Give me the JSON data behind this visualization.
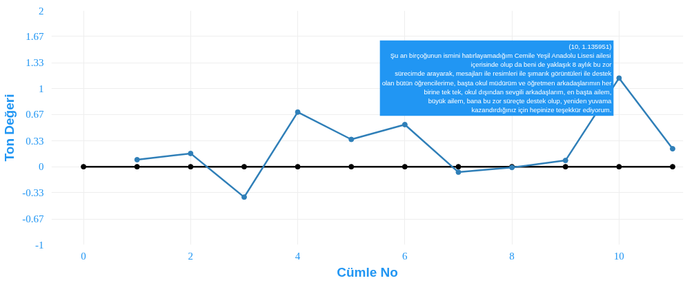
{
  "chart_data": {
    "type": "line",
    "xlabel": "Cümle No",
    "ylabel": "Ton Değeri",
    "xlim": [
      -0.6,
      11.2
    ],
    "ylim": [
      -1,
      2
    ],
    "xticks": [
      0,
      2,
      4,
      6,
      8,
      10
    ],
    "yticks": [
      -1,
      -0.67,
      -0.33,
      0,
      0.33,
      0.67,
      1,
      1.33,
      1.67,
      2
    ],
    "grid": true,
    "marker": "circle",
    "line_style": "solid",
    "series": [
      {
        "color": "#000000",
        "x": [
          0,
          1,
          2,
          3,
          4,
          5,
          6,
          7,
          8,
          9,
          10,
          11
        ],
        "values": [
          0,
          0,
          0,
          0,
          0,
          0,
          0,
          0,
          0,
          0,
          0,
          0
        ]
      },
      {
        "color": "#2f7fb8",
        "x": [
          1,
          2,
          3,
          4,
          5,
          6,
          7,
          8,
          9,
          10,
          11
        ],
        "values": [
          0.09,
          0.17,
          -0.39,
          0.7,
          0.35,
          0.54,
          -0.07,
          -0.01,
          0.08,
          1.135951,
          0.23
        ]
      }
    ],
    "annotations": [
      {
        "text": "(10, 1.135951)\nŞu an birçoğunun ismini hatırlayamadığım Cemile Yeşil Anadolu Lisesi ailesi\niçerisinde olup da beni de yaklaşık 8 aylık bu zor\nsürecimde arayarak, mesajları ile resimleri ile şımarık görüntüleri ile destek\nolan bütün öğrencilerime, başta okul müdürüm ve öğretmen arkadaşlarımın her\nbirine tek tek, okul dışından sevgili arkadaşlarım, en başta ailem,\nbüyük ailem, bana bu zor süreçte destek olup, yeniden yuvama\nkazandırdığınız için hepinize teşekkür ediyorum.",
        "x": 10,
        "y": 1.135951
      }
    ]
  }
}
